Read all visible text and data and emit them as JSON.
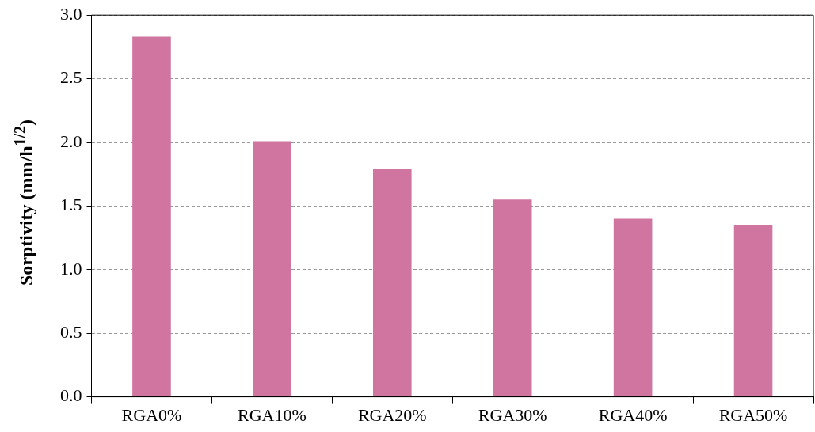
{
  "chart_data": {
    "type": "bar",
    "ylabel": "Sorptivity (mm/h$^{1/2}$)",
    "categories": [
      "RGA0%",
      "RGA10%",
      "RGA20%",
      "RGA30%",
      "RGA40%",
      "RGA50%"
    ],
    "values": [
      2.83,
      2.01,
      1.79,
      1.55,
      1.4,
      1.35
    ],
    "color": "#d074a0",
    "ylim": [
      0,
      3
    ],
    "yticks": [
      {
        "value": 0,
        "label": "0.0"
      },
      {
        "value": 0.5,
        "label": "0.5"
      },
      {
        "value": 1,
        "label": "1.0"
      },
      {
        "value": 1.5,
        "label": "1.5"
      },
      {
        "value": 2,
        "label": "2.0"
      },
      {
        "value": 2.5,
        "label": "2.5"
      },
      {
        "value": 3,
        "label": "3.0"
      }
    ],
    "grid": "y"
  }
}
